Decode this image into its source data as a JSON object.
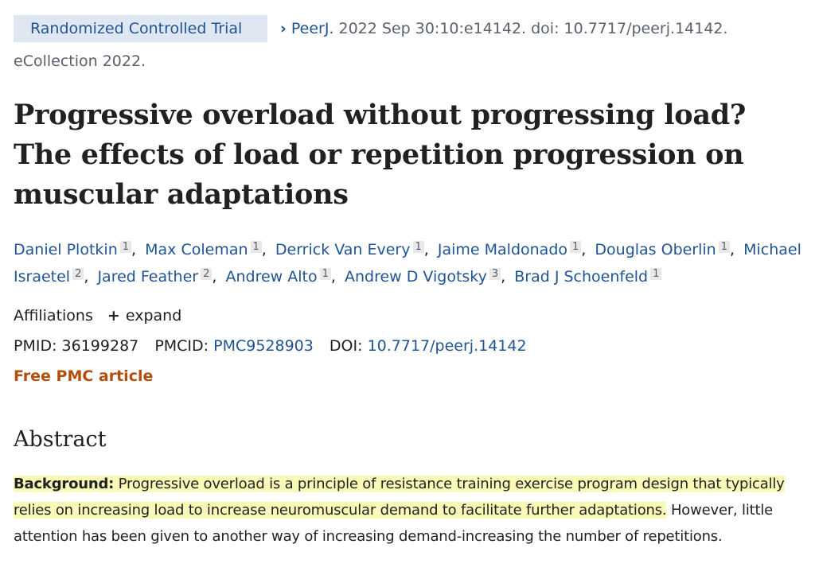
{
  "badge": "Randomized Controlled Trial",
  "citation": {
    "journal": "PeerJ.",
    "details": " 2022 Sep 30:10:e14142. doi: 10.7717/peerj.14142.",
    "line2": "eCollection 2022."
  },
  "title": "Progressive overload without progressing load? The effects of load or repetition progression on muscular adaptations",
  "authors": [
    {
      "name": "Daniel Plotkin",
      "aff": "1"
    },
    {
      "name": "Max Coleman",
      "aff": "1"
    },
    {
      "name": "Derrick Van Every",
      "aff": "1"
    },
    {
      "name": "Jaime Maldonado",
      "aff": "1"
    },
    {
      "name": "Douglas Oberlin",
      "aff": "1"
    },
    {
      "name": "Michael Israetel",
      "aff": "2"
    },
    {
      "name": "Jared Feather",
      "aff": "2"
    },
    {
      "name": "Andrew Alto",
      "aff": "1"
    },
    {
      "name": "Andrew D Vigotsky",
      "aff": "3"
    },
    {
      "name": "Brad J Schoenfeld",
      "aff": "1"
    }
  ],
  "affiliations": {
    "label": "Affiliations",
    "expand": "expand",
    "expand_icon": "plus-icon"
  },
  "ids": {
    "pmid_label": "PMID:",
    "pmid": "36199287",
    "pmcid_label": "PMCID:",
    "pmcid": "PMC9528903",
    "doi_label": "DOI:",
    "doi": "10.7717/peerj.14142"
  },
  "free_pmc": "Free PMC article",
  "abstract": {
    "heading": "Abstract",
    "background_label": "Background:",
    "highlighted": " Progressive overload is a principle of resistance training exercise program design that typically relies on increasing load to increase neuromuscular demand to facilitate further adaptations.",
    "rest": " However, little attention has been given to another way of increasing demand-increasing the number of repetitions.",
    "highlight_color": "#fafab8"
  },
  "colors": {
    "link": "#205493",
    "badge_bg": "#dfe7f2",
    "free_pmc": "#b44f0b"
  }
}
